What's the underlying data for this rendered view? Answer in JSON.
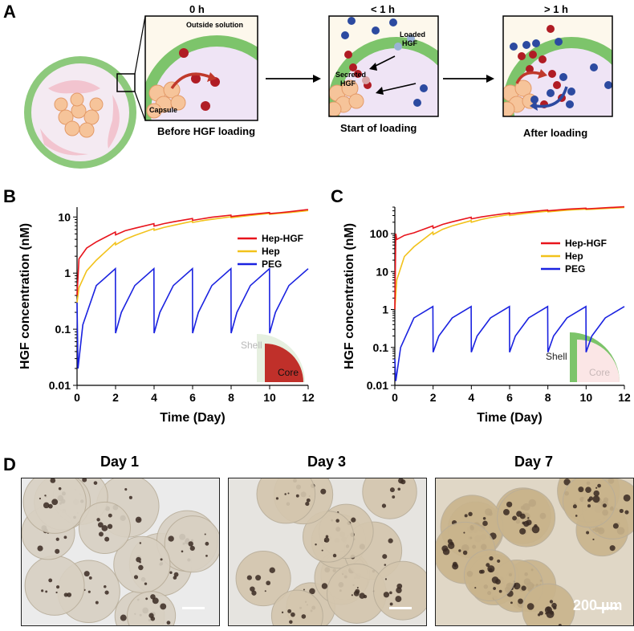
{
  "panel_labels": {
    "a": "A",
    "b": "B",
    "c": "C",
    "d": "D"
  },
  "schematic": {
    "times": [
      "0 h",
      "< 1 h",
      "> 1 h"
    ],
    "box1": {
      "outside": "Outside solution",
      "capsule": "Capsule",
      "caption": "Before HGF loading"
    },
    "box2": {
      "loaded": "Loaded",
      "loaded2": "HGF",
      "secreted": "Secreted",
      "secreted2": "HGF",
      "caption": "Start of loading"
    },
    "box3": {
      "caption": "After loading"
    }
  },
  "chart_data": [
    {
      "type": "line",
      "panel": "B",
      "xlabel": "Time (Day)",
      "ylabel": "HGF concentration (nM)",
      "yscale": "log",
      "xlim": [
        0,
        12
      ],
      "ylim": [
        0.01,
        15
      ],
      "xticks": [
        "0",
        "2",
        "4",
        "6",
        "8",
        "10",
        "12"
      ],
      "yticks": [
        "0.01",
        "0.1",
        "1",
        "10"
      ],
      "legend": "top-right",
      "series": [
        {
          "name": "Hep-HGF",
          "color": "#e8141c",
          "x": [
            0,
            0.1,
            0.5,
            1,
            1.99,
            2,
            2.5,
            3,
            3.99,
            4,
            4.5,
            5,
            5.99,
            6,
            6.5,
            7,
            7.99,
            8,
            8.5,
            9,
            9.99,
            10,
            10.5,
            11,
            12
          ],
          "y": [
            0.4,
            1.8,
            2.8,
            3.6,
            5.4,
            4.8,
            5.7,
            6.3,
            7.6,
            6.9,
            7.6,
            8.2,
            9.4,
            8.7,
            9.3,
            9.9,
            10.8,
            10.2,
            10.7,
            11.1,
            12.0,
            11.5,
            11.9,
            12.4,
            13.6
          ]
        },
        {
          "name": "Hep",
          "color": "#f2c21b",
          "x": [
            0,
            0.1,
            0.5,
            1,
            1.99,
            2,
            2.5,
            3,
            3.99,
            4,
            4.5,
            5,
            5.99,
            6,
            6.5,
            7,
            7.99,
            8,
            8.5,
            9,
            9.99,
            10,
            10.5,
            11,
            12
          ],
          "y": [
            0.3,
            0.55,
            1.1,
            1.7,
            3.5,
            3.2,
            4.0,
            4.7,
            6.2,
            5.8,
            6.5,
            7.1,
            8.4,
            8.0,
            8.6,
            9.1,
            10.1,
            9.7,
            10.2,
            10.7,
            11.6,
            11.2,
            11.6,
            12.0,
            13.0
          ]
        },
        {
          "name": "PEG",
          "color": "#1a22e0",
          "x": [
            0,
            0.05,
            0.3,
            1,
            1.99,
            2,
            2.3,
            3,
            3.99,
            4,
            4.3,
            5,
            5.99,
            6,
            6.3,
            7,
            7.99,
            8,
            8.3,
            9,
            9.99,
            10,
            10.3,
            11,
            12
          ],
          "y": [
            0.3,
            0.02,
            0.12,
            0.6,
            1.2,
            0.085,
            0.2,
            0.6,
            1.2,
            0.085,
            0.2,
            0.6,
            1.2,
            0.085,
            0.2,
            0.6,
            1.2,
            0.085,
            0.2,
            0.6,
            1.2,
            0.085,
            0.2,
            0.6,
            1.2
          ]
        }
      ],
      "inset": {
        "shell": "Shell",
        "core": "Core"
      }
    },
    {
      "type": "line",
      "panel": "C",
      "xlabel": "Time (Day)",
      "ylabel": "HGF concentration (nM)",
      "yscale": "log",
      "xlim": [
        0,
        12
      ],
      "ylim": [
        0.01,
        500
      ],
      "xticks": [
        "0",
        "2",
        "4",
        "6",
        "8",
        "10",
        "12"
      ],
      "yticks": [
        "0.01",
        "0.1",
        "1",
        "10",
        "100"
      ],
      "legend": "top-right",
      "series": [
        {
          "name": "Hep-HGF",
          "color": "#e8141c",
          "x": [
            0,
            0.05,
            0.1,
            0.5,
            1,
            1.99,
            2,
            2.5,
            3,
            3.99,
            4,
            4.5,
            5,
            5.99,
            6,
            6.5,
            7,
            7.99,
            8,
            8.5,
            9,
            9.99,
            10,
            10.5,
            11,
            12
          ],
          "y": [
            1.0,
            100,
            70,
            90,
            105,
            160,
            140,
            175,
            205,
            270,
            245,
            275,
            300,
            350,
            330,
            355,
            375,
            420,
            400,
            420,
            440,
            470,
            450,
            465,
            480,
            510
          ]
        },
        {
          "name": "Hep",
          "color": "#f2c21b",
          "x": [
            0,
            0.1,
            0.5,
            1,
            1.99,
            2,
            2.5,
            3,
            3.99,
            4,
            4.5,
            5,
            5.99,
            6,
            6.5,
            7,
            7.99,
            8,
            8.5,
            9,
            9.99,
            10,
            10.5,
            11,
            12
          ],
          "y": [
            1.0,
            6,
            25,
            45,
            110,
            95,
            130,
            160,
            220,
            200,
            235,
            265,
            320,
            300,
            325,
            350,
            390,
            375,
            395,
            415,
            445,
            430,
            445,
            460,
            490
          ]
        },
        {
          "name": "PEG",
          "color": "#1a22e0",
          "x": [
            0,
            0.05,
            0.3,
            1,
            1.99,
            2,
            2.3,
            3,
            3.99,
            4,
            4.3,
            5,
            5.99,
            6,
            6.3,
            7,
            7.99,
            8,
            8.3,
            9,
            9.99,
            10,
            10.3,
            11,
            12
          ],
          "y": [
            0.05,
            0.013,
            0.1,
            0.6,
            1.2,
            0.075,
            0.2,
            0.6,
            1.2,
            0.075,
            0.2,
            0.6,
            1.2,
            0.075,
            0.2,
            0.6,
            1.2,
            0.075,
            0.2,
            0.6,
            1.2,
            0.075,
            0.2,
            0.6,
            1.2
          ]
        }
      ],
      "inset": {
        "shell": "Shell",
        "core": "Core"
      }
    }
  ],
  "micrographs": [
    {
      "title": "Day 1",
      "tint": "#d8d0c2"
    },
    {
      "title": "Day 3",
      "tint": "#d4c6ae"
    },
    {
      "title": "Day 7",
      "tint": "#c9b48c"
    }
  ],
  "scale_bar_label": "200 µm"
}
